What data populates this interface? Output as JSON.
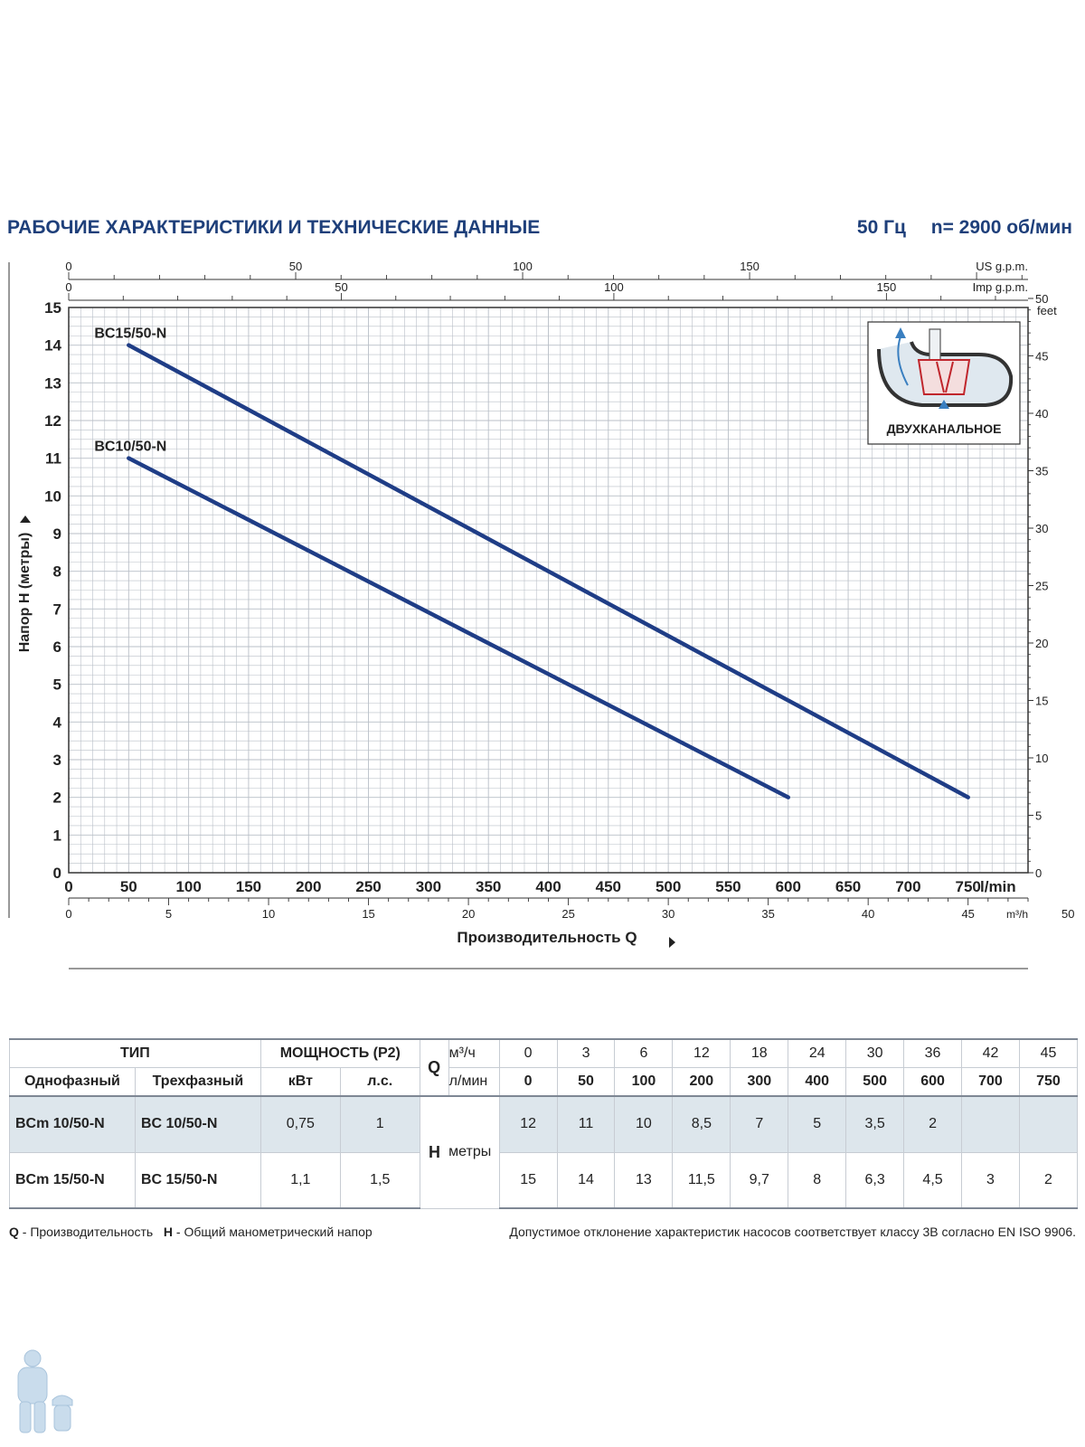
{
  "header": {
    "title": "РАБОЧИЕ ХАРАКТЕРИСТИКИ И ТЕХНИЧЕСКИЕ ДАННЫЕ",
    "frequency": "50 Гц",
    "speed": "n= 2900 об/мин"
  },
  "colors": {
    "curve": "#1f3d86",
    "grid": "#b9bfc7",
    "accent": "#1e3f7a",
    "table_shade": "#dde6ec"
  },
  "chart_data": {
    "type": "line",
    "x_unit": "l/min",
    "xlim": [
      0,
      800
    ],
    "ylim": [
      0,
      15
    ],
    "grid": true,
    "ylabel": "Напор H (метры)",
    "xlabel": "Производительность Q",
    "x_ticks": [
      "0",
      "50",
      "100",
      "150",
      "200",
      "250",
      "300",
      "350",
      "400",
      "450",
      "500",
      "550",
      "600",
      "650",
      "700",
      "750"
    ],
    "y_ticks": [
      "0",
      "1",
      "2",
      "3",
      "4",
      "5",
      "6",
      "7",
      "8",
      "9",
      "10",
      "11",
      "12",
      "13",
      "14",
      "15"
    ],
    "feet_label": "feet",
    "feet_ticks": [
      "0",
      "5",
      "10",
      "15",
      "20",
      "25",
      "30",
      "35",
      "40",
      "45",
      "50"
    ],
    "us_gpm_label": "US g.p.m.",
    "us_gpm_ticks": [
      "0",
      "50",
      "100",
      "150"
    ],
    "imp_gpm_label": "Imp g.p.m.",
    "imp_gpm_ticks": [
      "0",
      "50",
      "100",
      "150"
    ],
    "m3h_label": "m³/h",
    "m3h_ticks": [
      "0",
      "5",
      "10",
      "15",
      "20",
      "25",
      "30",
      "35",
      "40",
      "45",
      "50"
    ],
    "series": [
      {
        "name": "BC15/50-N",
        "x": [
          50,
          750
        ],
        "y": [
          14,
          2
        ]
      },
      {
        "name": "BC10/50-N",
        "x": [
          50,
          600
        ],
        "y": [
          11,
          2
        ]
      }
    ],
    "inset": {
      "label": "ДВУХКАНАЛЬНОЕ",
      "icon": "two-channel-impeller-icon"
    }
  },
  "table": {
    "type_header": "ТИП",
    "power_header": "МОЩНОСТЬ (P2)",
    "single_phase": "Однофазный",
    "three_phase": "Трехфазный",
    "kw": "кВт",
    "hp": "л.с.",
    "q_label": "Q",
    "m3h_unit": "м³/ч",
    "lmin_unit": "л/мин",
    "h_label": "H",
    "h_unit": "метры",
    "q_m3h": [
      "0",
      "3",
      "6",
      "12",
      "18",
      "24",
      "30",
      "36",
      "42",
      "45"
    ],
    "q_lmin": [
      "0",
      "50",
      "100",
      "200",
      "300",
      "400",
      "500",
      "600",
      "700",
      "750"
    ],
    "rows": [
      {
        "single": "BCm 10/50-N",
        "three": "BC 10/50-N",
        "kw": "0,75",
        "hp": "1",
        "h": [
          "12",
          "11",
          "10",
          "8,5",
          "7",
          "5",
          "3,5",
          "2",
          "",
          ""
        ]
      },
      {
        "single": "BCm 15/50-N",
        "three": "BC 15/50-N",
        "kw": "1,1",
        "hp": "1,5",
        "h": [
          "15",
          "14",
          "13",
          "11,5",
          "9,7",
          "8",
          "6,3",
          "4,5",
          "3",
          "2"
        ]
      }
    ]
  },
  "footnotes": {
    "q_key": "Q",
    "q_text": " - Производительность",
    "h_key": "H",
    "h_text": " - Общий манометрический напор",
    "tolerance": "Допустимое отклонение характеристик насосов соответствует классу 3B согласно EN ISO 9906."
  }
}
